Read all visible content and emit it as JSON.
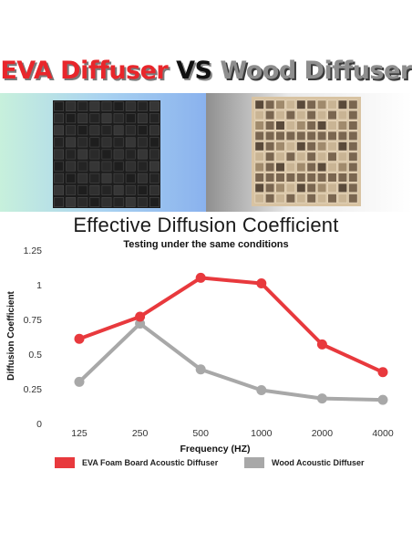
{
  "banner": {
    "part_eva": "EVA Diffuser",
    "part_vs": "VS",
    "part_wood": "Wood Diffuser"
  },
  "colors": {
    "eva": "#e8393d",
    "wood": "#a8a8a8",
    "eva_panel": "#1c1c1c",
    "wood_panel": "#d8c3a2"
  },
  "chart_data": {
    "type": "line",
    "title": "Effective Diffusion Coefficient",
    "subtitle": "Testing under the same conditions",
    "xlabel": "Frequency (HZ)",
    "ylabel": "Diffusion Coefficient",
    "categories": [
      "125",
      "250",
      "500",
      "1000",
      "2000",
      "4000"
    ],
    "y_ticks": [
      "0",
      "0.25",
      "0.5",
      "0.75",
      "1",
      "1.25"
    ],
    "ylim": [
      0,
      1.25
    ],
    "grid": false,
    "legend_position": "bottom",
    "series": [
      {
        "name": "EVA Foam Board Acoustic Diffuser",
        "color": "#e8393d",
        "values": [
          0.61,
          0.77,
          1.05,
          1.01,
          0.57,
          0.37
        ]
      },
      {
        "name": "Wood Acoustic Diffuser",
        "color": "#a8a8a8",
        "values": [
          0.3,
          0.72,
          0.39,
          0.24,
          0.18,
          0.17
        ]
      }
    ]
  }
}
